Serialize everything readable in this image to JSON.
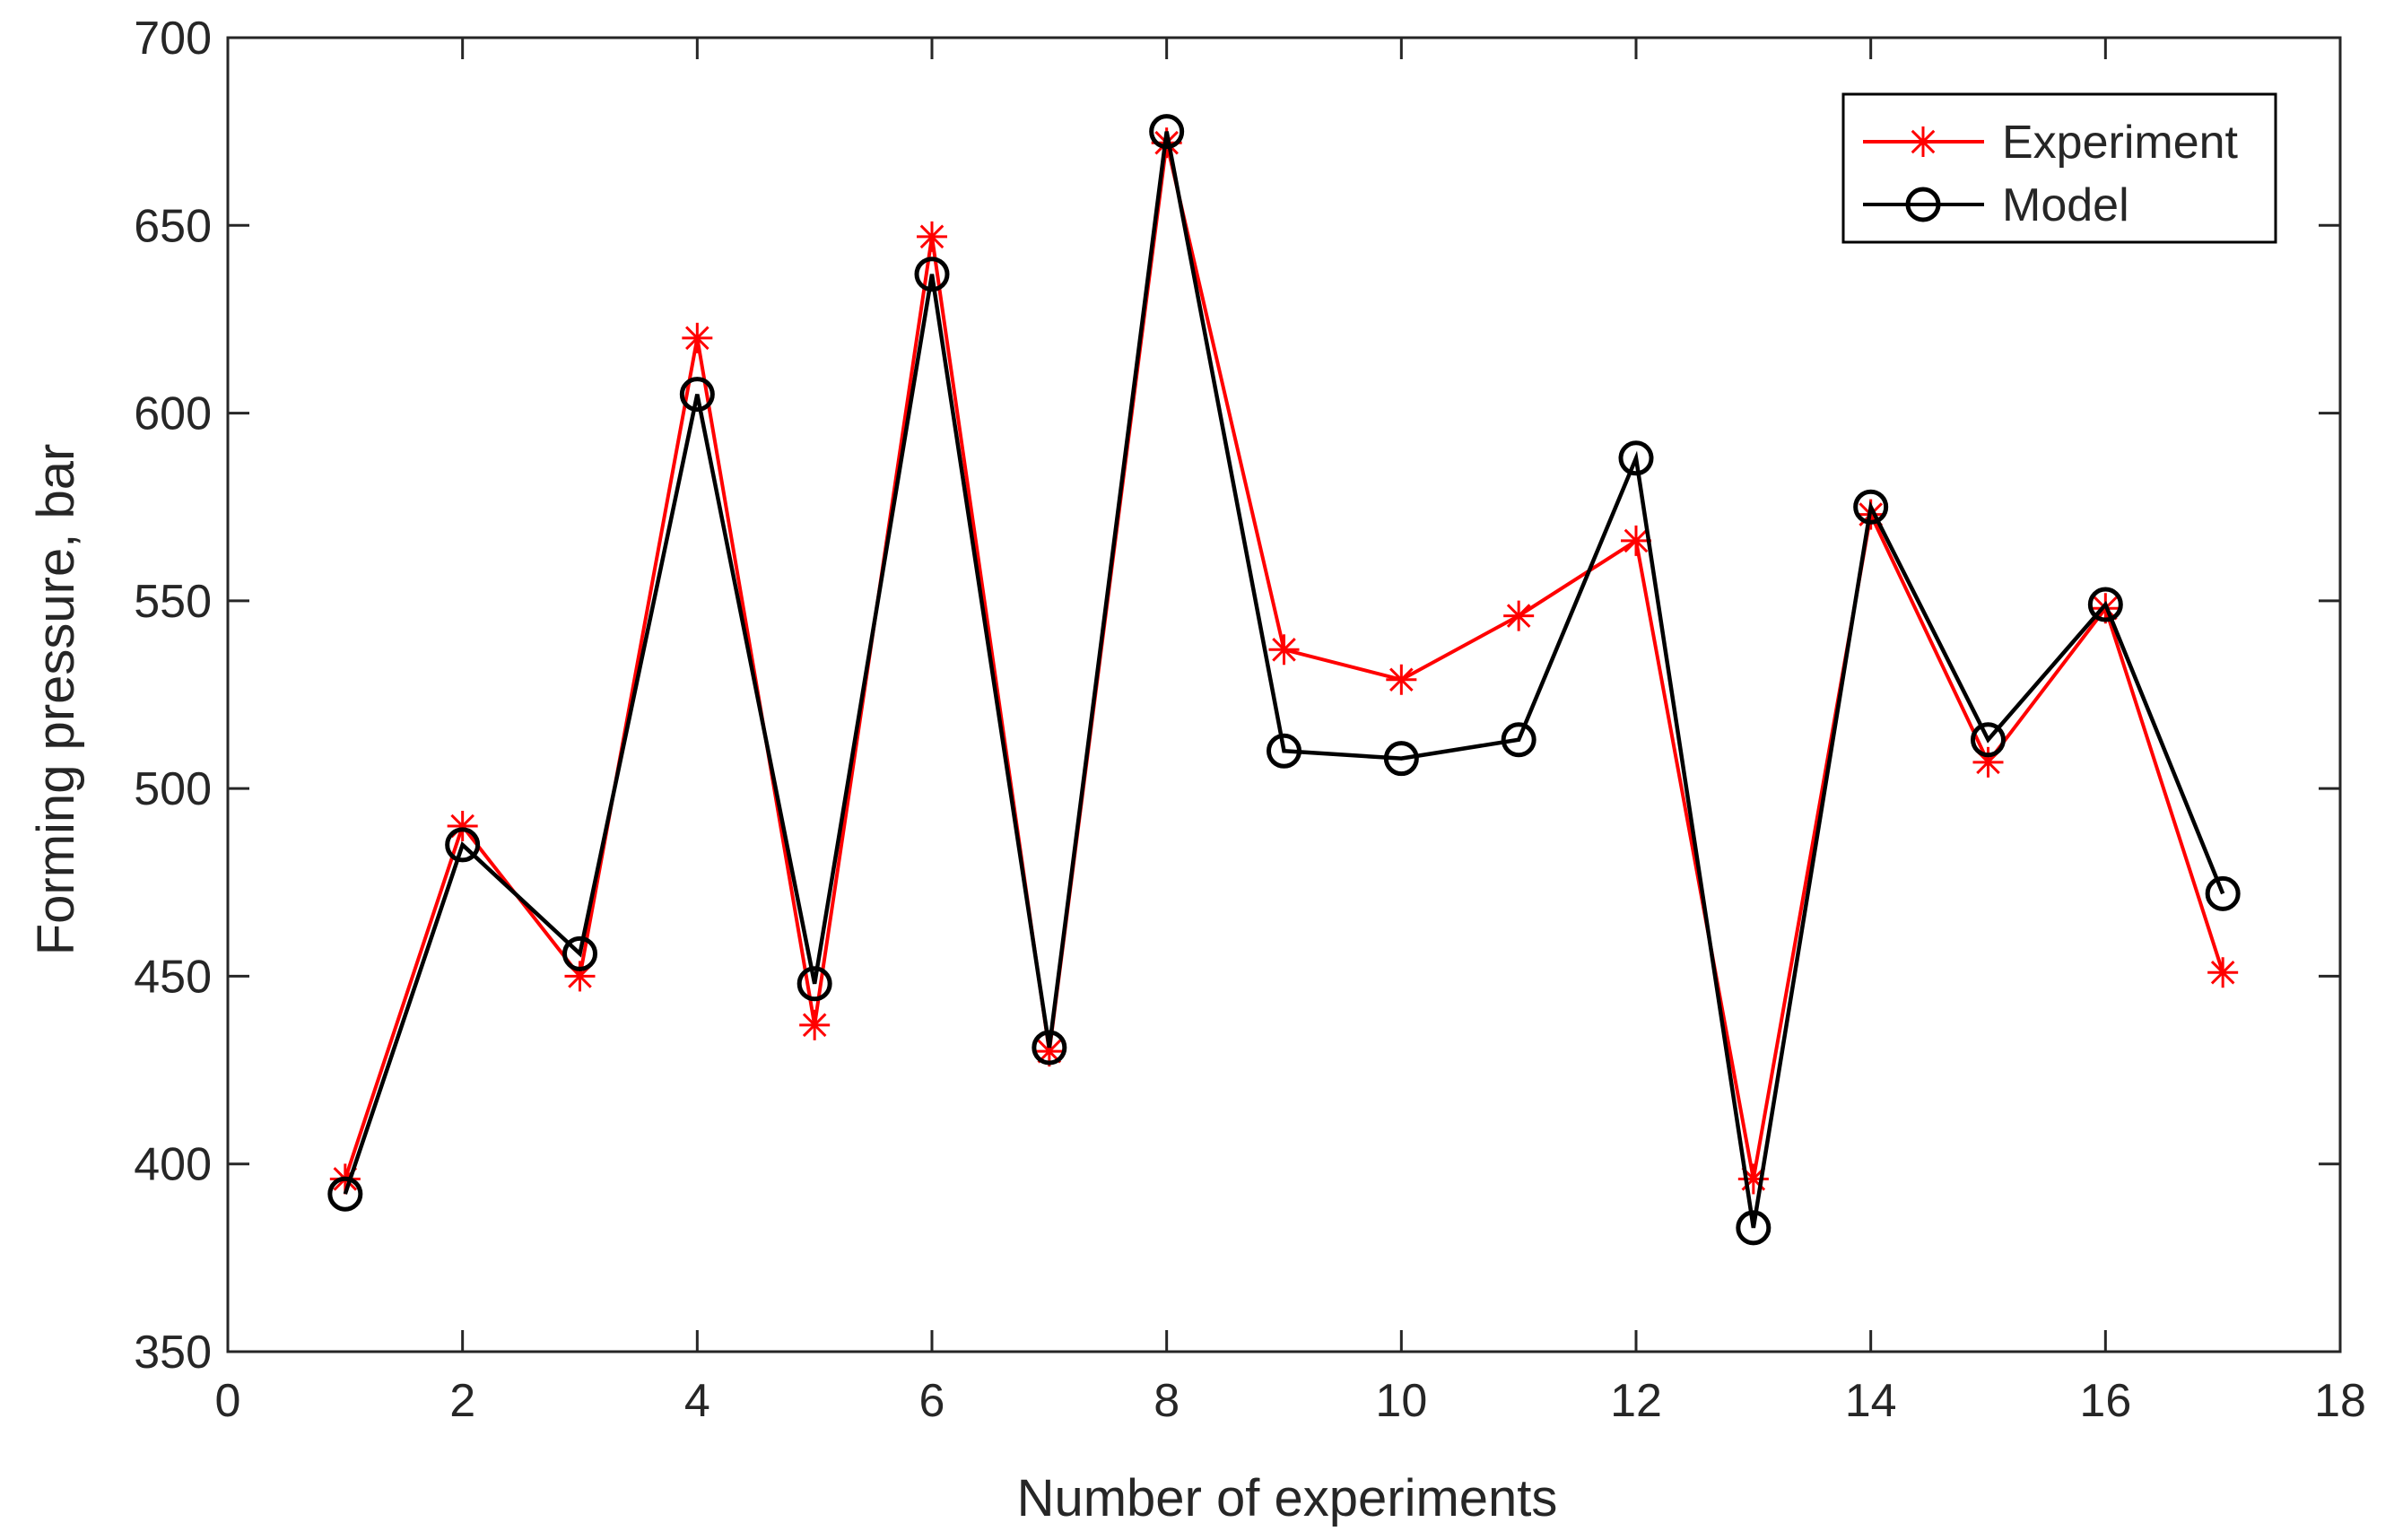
{
  "chart_data": {
    "type": "line",
    "title": "",
    "xlabel": "Number of experiments",
    "ylabel": "Forming pressure, bar",
    "xlim": [
      0,
      18
    ],
    "ylim": [
      350,
      700
    ],
    "xticks": [
      0,
      2,
      4,
      6,
      8,
      10,
      12,
      14,
      16,
      18
    ],
    "yticks": [
      350,
      400,
      450,
      500,
      550,
      600,
      650,
      700
    ],
    "x": [
      1,
      2,
      3,
      4,
      5,
      6,
      7,
      8,
      9,
      10,
      11,
      12,
      13,
      14,
      15,
      16,
      17
    ],
    "series": [
      {
        "name": "Experiment",
        "color": "#ff0000",
        "marker": "asterisk",
        "values": [
          396,
          490,
          450,
          620,
          437,
          647,
          430,
          672,
          537,
          529,
          546,
          566,
          396,
          573,
          507,
          548,
          451
        ]
      },
      {
        "name": "Model",
        "color": "#000000",
        "marker": "circle",
        "values": [
          392,
          485,
          456,
          605,
          448,
          637,
          431,
          675,
          510,
          508,
          513,
          588,
          383,
          575,
          513,
          549,
          472
        ]
      }
    ],
    "grid": false,
    "legend_position": "top-right"
  }
}
